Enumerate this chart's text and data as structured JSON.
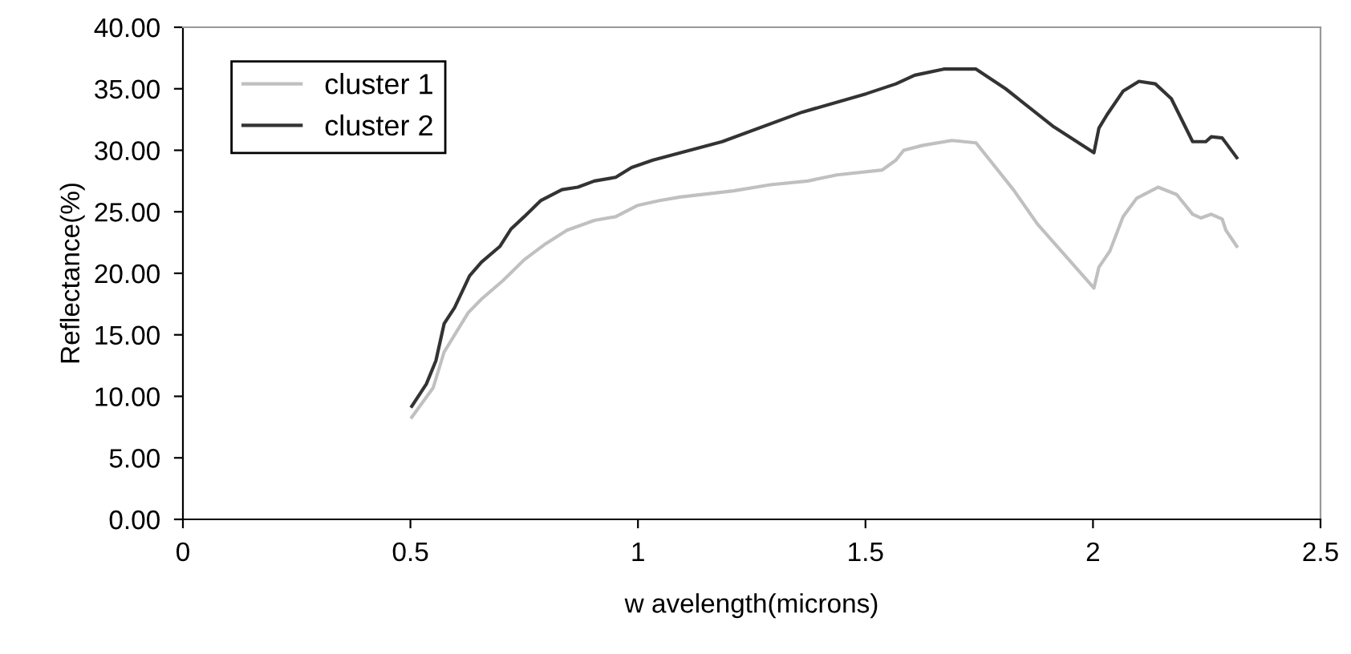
{
  "chart_data": {
    "type": "line",
    "xlabel": "w avelength(microns)",
    "ylabel": "Reflectance(%)",
    "xlim": [
      0,
      2.5
    ],
    "xticks": [
      0,
      0.5,
      1,
      1.5,
      2,
      2.5
    ],
    "ylim": [
      0,
      40
    ],
    "yticks": [
      {
        "value": 0,
        "label": "0.00"
      },
      {
        "value": 5,
        "label": "5.00"
      },
      {
        "value": 10,
        "label": "10.00"
      },
      {
        "value": 15,
        "label": "15.00"
      },
      {
        "value": 20,
        "label": "20.00"
      },
      {
        "value": 25,
        "label": "25.00"
      },
      {
        "value": 30,
        "label": "30.00"
      },
      {
        "value": 35,
        "label": "35.00"
      },
      {
        "value": 40,
        "label": "40.00"
      }
    ],
    "grid": false,
    "legend": "top left",
    "marker": "none",
    "line_style": "solid",
    "series": [
      {
        "name": "cluster 1",
        "color": "#c0c0c0",
        "x": [
          0.503,
          0.55,
          0.574,
          0.627,
          0.656,
          0.703,
          0.75,
          0.797,
          0.844,
          0.904,
          0.951,
          0.998,
          1.045,
          1.092,
          1.21,
          1.291,
          1.373,
          1.437,
          1.537,
          1.567,
          1.584,
          1.626,
          1.69,
          1.743,
          1.825,
          1.878,
          2.002,
          2.013,
          2.037,
          2.066,
          2.096,
          2.143,
          2.184,
          2.219,
          2.237,
          2.26,
          2.284,
          2.292,
          2.316
        ],
        "values": [
          8.3,
          10.7,
          13.6,
          16.8,
          17.9,
          19.4,
          21.1,
          22.4,
          23.5,
          24.3,
          24.6,
          25.5,
          25.9,
          26.2,
          26.7,
          27.2,
          27.5,
          28.0,
          28.4,
          29.2,
          30.0,
          30.4,
          30.8,
          30.6,
          26.8,
          24.0,
          18.8,
          20.5,
          21.8,
          24.6,
          26.1,
          27.0,
          26.4,
          24.8,
          24.5,
          24.8,
          24.4,
          23.5,
          22.2
        ]
      },
      {
        "name": "cluster 2",
        "color": "#333333",
        "x": [
          0.503,
          0.535,
          0.556,
          0.574,
          0.597,
          0.63,
          0.656,
          0.697,
          0.721,
          0.75,
          0.786,
          0.833,
          0.868,
          0.904,
          0.951,
          0.986,
          1.033,
          1.185,
          1.361,
          1.502,
          1.567,
          1.608,
          1.672,
          1.743,
          1.808,
          1.914,
          2.002,
          2.013,
          2.031,
          2.066,
          2.101,
          2.137,
          2.172,
          2.219,
          2.248,
          2.26,
          2.284,
          2.316
        ],
        "values": [
          9.2,
          11.0,
          12.9,
          15.9,
          17.2,
          19.8,
          20.9,
          22.2,
          23.6,
          24.6,
          25.9,
          26.8,
          27.0,
          27.5,
          27.8,
          28.6,
          29.2,
          30.7,
          33.1,
          34.6,
          35.4,
          36.1,
          36.6,
          36.6,
          35.0,
          31.9,
          29.8,
          31.8,
          32.9,
          34.8,
          35.6,
          35.4,
          34.2,
          30.7,
          30.7,
          31.1,
          31.0,
          29.4
        ]
      }
    ]
  }
}
